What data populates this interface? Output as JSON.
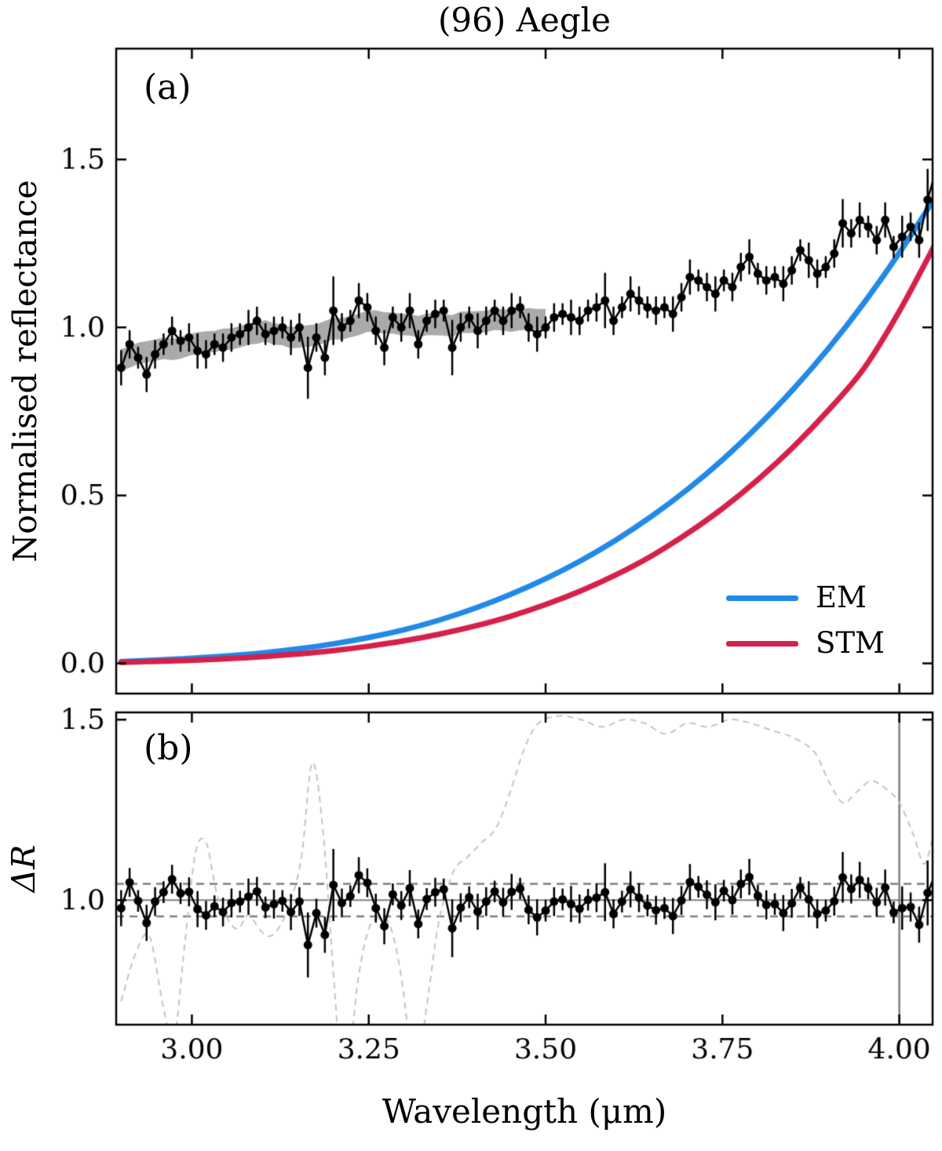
{
  "chart_data": {
    "type": "line",
    "title": "(96) Aegle",
    "xlabel": "Wavelength (μm)",
    "background": "#ffffff",
    "xlim": [
      2.893,
      4.047
    ],
    "xticks": [
      3.0,
      3.25,
      3.5,
      3.75,
      4.0
    ],
    "xtick_labels": [
      "3.00",
      "3.25",
      "3.50",
      "3.75",
      "4.00"
    ],
    "panels": [
      {
        "label": "(a)",
        "ylabel": "Normalised reflectance",
        "ylim": [
          -0.09,
          1.83
        ],
        "yticks": [
          0.0,
          0.5,
          1.0,
          1.5
        ],
        "ytick_labels": [
          "0.0",
          "0.5",
          "1.0",
          "1.5"
        ],
        "legend": [
          {
            "label": "EM",
            "color": "#2189e8"
          },
          {
            "label": "STM",
            "color": "#d6204a"
          }
        ],
        "series": [
          {
            "name": "spectrum",
            "type": "scatter-line",
            "color": "#000000",
            "x": [
              2.9,
              2.912,
              2.924,
              2.936,
              2.948,
              2.96,
              2.972,
              2.984,
              2.996,
              3.008,
              3.02,
              3.032,
              3.044,
              3.056,
              3.068,
              3.08,
              3.092,
              3.104,
              3.116,
              3.128,
              3.14,
              3.152,
              3.164,
              3.176,
              3.188,
              3.2,
              3.212,
              3.224,
              3.236,
              3.248,
              3.26,
              3.272,
              3.284,
              3.296,
              3.308,
              3.32,
              3.332,
              3.344,
              3.356,
              3.368,
              3.38,
              3.392,
              3.404,
              3.416,
              3.428,
              3.44,
              3.452,
              3.464,
              3.476,
              3.488,
              3.5,
              3.512,
              3.524,
              3.536,
              3.548,
              3.56,
              3.572,
              3.584,
              3.596,
              3.608,
              3.62,
              3.632,
              3.644,
              3.656,
              3.668,
              3.68,
              3.692,
              3.704,
              3.716,
              3.728,
              3.74,
              3.752,
              3.764,
              3.776,
              3.788,
              3.8,
              3.812,
              3.824,
              3.836,
              3.848,
              3.86,
              3.872,
              3.884,
              3.896,
              3.908,
              3.92,
              3.932,
              3.944,
              3.956,
              3.968,
              3.98,
              3.992,
              4.004,
              4.016,
              4.028,
              4.04,
              4.052
            ],
            "y": [
              0.88,
              0.95,
              0.91,
              0.86,
              0.92,
              0.95,
              0.99,
              0.96,
              0.97,
              0.93,
              0.92,
              0.95,
              0.94,
              0.97,
              0.98,
              1.0,
              1.02,
              0.98,
              0.99,
              1.0,
              0.97,
              1.0,
              0.88,
              0.97,
              0.91,
              1.05,
              1.0,
              1.02,
              1.08,
              1.06,
              0.99,
              0.94,
              1.03,
              1.0,
              1.05,
              0.95,
              1.02,
              1.04,
              1.05,
              0.94,
              1.0,
              1.03,
              0.99,
              1.02,
              1.05,
              1.02,
              1.05,
              1.06,
              1.0,
              0.98,
              1.0,
              1.03,
              1.04,
              1.03,
              1.02,
              1.05,
              1.06,
              1.08,
              1.02,
              1.06,
              1.1,
              1.08,
              1.06,
              1.05,
              1.06,
              1.04,
              1.09,
              1.15,
              1.14,
              1.12,
              1.1,
              1.14,
              1.12,
              1.18,
              1.21,
              1.16,
              1.14,
              1.15,
              1.13,
              1.17,
              1.23,
              1.2,
              1.16,
              1.18,
              1.22,
              1.31,
              1.28,
              1.32,
              1.3,
              1.26,
              1.32,
              1.24,
              1.27,
              1.3,
              1.26,
              1.38,
              1.47
            ],
            "yerr": [
              0.05,
              0.04,
              0.03,
              0.05,
              0.04,
              0.03,
              0.04,
              0.03,
              0.04,
              0.05,
              0.04,
              0.03,
              0.04,
              0.04,
              0.03,
              0.05,
              0.04,
              0.03,
              0.04,
              0.03,
              0.05,
              0.04,
              0.09,
              0.04,
              0.05,
              0.1,
              0.04,
              0.03,
              0.05,
              0.04,
              0.04,
              0.05,
              0.03,
              0.04,
              0.05,
              0.04,
              0.03,
              0.04,
              0.03,
              0.08,
              0.04,
              0.03,
              0.05,
              0.04,
              0.03,
              0.04,
              0.05,
              0.03,
              0.04,
              0.05,
              0.03,
              0.04,
              0.03,
              0.05,
              0.04,
              0.03,
              0.04,
              0.08,
              0.04,
              0.03,
              0.05,
              0.04,
              0.03,
              0.04,
              0.03,
              0.05,
              0.04,
              0.05,
              0.03,
              0.04,
              0.05,
              0.03,
              0.04,
              0.04,
              0.05,
              0.03,
              0.04,
              0.03,
              0.05,
              0.04,
              0.03,
              0.05,
              0.04,
              0.03,
              0.04,
              0.07,
              0.04,
              0.05,
              0.03,
              0.04,
              0.05,
              0.03,
              0.06,
              0.04,
              0.05,
              0.09,
              0.06
            ]
          },
          {
            "name": "uncertainty-band",
            "type": "band",
            "color": "#aaaaaa",
            "x_max": 3.505,
            "half_width": 0.032
          },
          {
            "name": "EM",
            "type": "curve",
            "color": "#2189e8",
            "x": [
              2.9,
              2.95,
              3.0,
              3.05,
              3.1,
              3.15,
              3.2,
              3.25,
              3.3,
              3.35,
              3.4,
              3.45,
              3.5,
              3.55,
              3.6,
              3.65,
              3.7,
              3.75,
              3.8,
              3.85,
              3.9,
              3.95,
              4.0,
              4.05
            ],
            "y": [
              0.005,
              0.01,
              0.015,
              0.022,
              0.031,
              0.043,
              0.058,
              0.077,
              0.1,
              0.129,
              0.164,
              0.205,
              0.252,
              0.306,
              0.368,
              0.438,
              0.517,
              0.606,
              0.706,
              0.816,
              0.938,
              1.073,
              1.222,
              1.385
            ]
          },
          {
            "name": "STM",
            "type": "curve",
            "color": "#d6204a",
            "x": [
              2.9,
              2.95,
              3.0,
              3.05,
              3.1,
              3.15,
              3.2,
              3.25,
              3.3,
              3.35,
              3.4,
              3.45,
              3.5,
              3.55,
              3.6,
              3.65,
              3.7,
              3.75,
              3.8,
              3.85,
              3.9,
              3.95,
              4.0,
              4.05
            ],
            "y": [
              0.003,
              0.006,
              0.009,
              0.014,
              0.02,
              0.028,
              0.038,
              0.051,
              0.067,
              0.087,
              0.111,
              0.14,
              0.175,
              0.216,
              0.264,
              0.32,
              0.386,
              0.461,
              0.547,
              0.644,
              0.754,
              0.878,
              1.048,
              1.245
            ]
          }
        ]
      },
      {
        "label": "(b)",
        "ylabel": "ΔR",
        "ylim": [
          0.655,
          1.52
        ],
        "yticks": [
          1.0,
          1.5
        ],
        "ytick_labels": [
          "1.0",
          "1.5"
        ],
        "hline_solid": 1.0,
        "hlines_dashed": [
          0.955,
          1.045
        ],
        "vline": 4.0,
        "guide_color": "#7f7f7f",
        "series": [
          {
            "name": "delta-r",
            "type": "scatter-line",
            "color": "#000000",
            "x_same_as_spectrum": true,
            "yerr_same_as_spectrum": true,
            "y": [
              0.978,
              1.049,
              0.998,
              0.937,
              0.996,
              1.022,
              1.058,
              1.019,
              1.023,
              0.975,
              0.958,
              0.983,
              0.967,
              0.992,
              0.996,
              1.01,
              1.024,
              0.98,
              0.989,
              0.998,
              0.967,
              0.996,
              0.876,
              0.964,
              0.904,
              1.042,
              0.992,
              1.011,
              1.069,
              1.048,
              0.978,
              0.928,
              1.016,
              0.985,
              1.033,
              0.934,
              1.003,
              1.022,
              1.03,
              0.922,
              0.979,
              1.008,
              0.968,
              0.996,
              1.024,
              0.994,
              1.023,
              1.032,
              0.973,
              0.952,
              0.971,
              0.996,
              1.002,
              0.989,
              0.976,
              1.001,
              1.007,
              1.022,
              0.962,
              0.996,
              1.03,
              1.007,
              0.985,
              0.972,
              0.978,
              0.956,
              0.999,
              1.05,
              1.037,
              1.015,
              0.994,
              1.026,
              1.0,
              1.045,
              1.064,
              1.012,
              0.987,
              0.989,
              0.964,
              0.991,
              1.034,
              1.002,
              0.962,
              0.971,
              0.997,
              1.063,
              1.031,
              1.056,
              1.033,
              0.994,
              1.035,
              0.966,
              0.978,
              0.981,
              0.932,
              1.02,
              1.075
            ]
          },
          {
            "name": "model-ratio",
            "type": "dashed-curve",
            "color": "#c4c4c4",
            "x": [
              2.9,
              2.92,
              2.94,
              2.96,
              2.975,
              2.99,
              3.005,
              3.02,
              3.035,
              3.05,
              3.065,
              3.08,
              3.095,
              3.11,
              3.125,
              3.14,
              3.155,
              3.17,
              3.185,
              3.2,
              3.21,
              3.22,
              3.235,
              3.25,
              3.265,
              3.28,
              3.295,
              3.31,
              3.32,
              3.335,
              3.35,
              3.37,
              3.39,
              3.41,
              3.43,
              3.45,
              3.47,
              3.49,
              3.52,
              3.55,
              3.58,
              3.61,
              3.64,
              3.67,
              3.7,
              3.73,
              3.76,
              3.79,
              3.82,
              3.85,
              3.88,
              3.9,
              3.92,
              3.94,
              3.96,
              3.98,
              4.0,
              4.02,
              4.035,
              4.047
            ],
            "y": [
              0.72,
              0.85,
              0.9,
              0.7,
              0.62,
              0.88,
              1.13,
              1.16,
              1.02,
              0.95,
              0.92,
              0.96,
              0.92,
              0.9,
              0.93,
              1.0,
              1.12,
              1.38,
              1.2,
              0.8,
              0.55,
              0.52,
              0.78,
              0.92,
              0.95,
              0.93,
              0.8,
              0.58,
              0.55,
              0.75,
              0.95,
              1.08,
              1.12,
              1.16,
              1.2,
              1.3,
              1.42,
              1.49,
              1.51,
              1.5,
              1.48,
              1.5,
              1.49,
              1.46,
              1.49,
              1.48,
              1.5,
              1.49,
              1.47,
              1.45,
              1.41,
              1.33,
              1.27,
              1.3,
              1.33,
              1.31,
              1.27,
              1.18,
              1.1,
              1.17
            ]
          }
        ]
      }
    ]
  }
}
